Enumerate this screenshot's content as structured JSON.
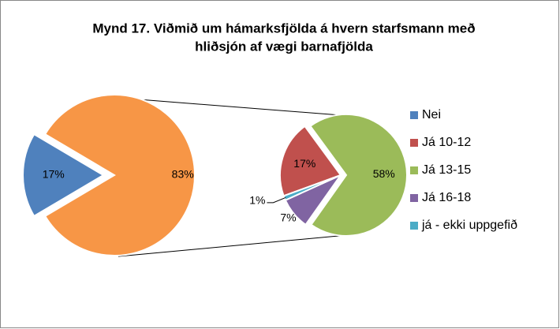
{
  "chart_data": {
    "type": "pie",
    "title": [
      "Mynd 17. Viðmið um hámarksfjölda á hvern starfsmann með",
      "hliðsjón af vægi barnafjölda"
    ],
    "categories": [
      "Nei",
      "Já 10-12",
      "Já 13-15",
      "Já 16-18",
      "já - ekki uppgefið"
    ],
    "values": [
      17,
      17,
      58,
      7,
      1
    ],
    "value_labels": [
      "17%",
      "17%",
      "58%",
      "7%",
      "1%"
    ],
    "colors": [
      "#4f81bd",
      "#c0504d",
      "#9bbb59",
      "#8064a2",
      "#4bacc6"
    ],
    "other_value": 83,
    "other_label": "83%",
    "other_color": "#f79646",
    "legend": "right"
  }
}
